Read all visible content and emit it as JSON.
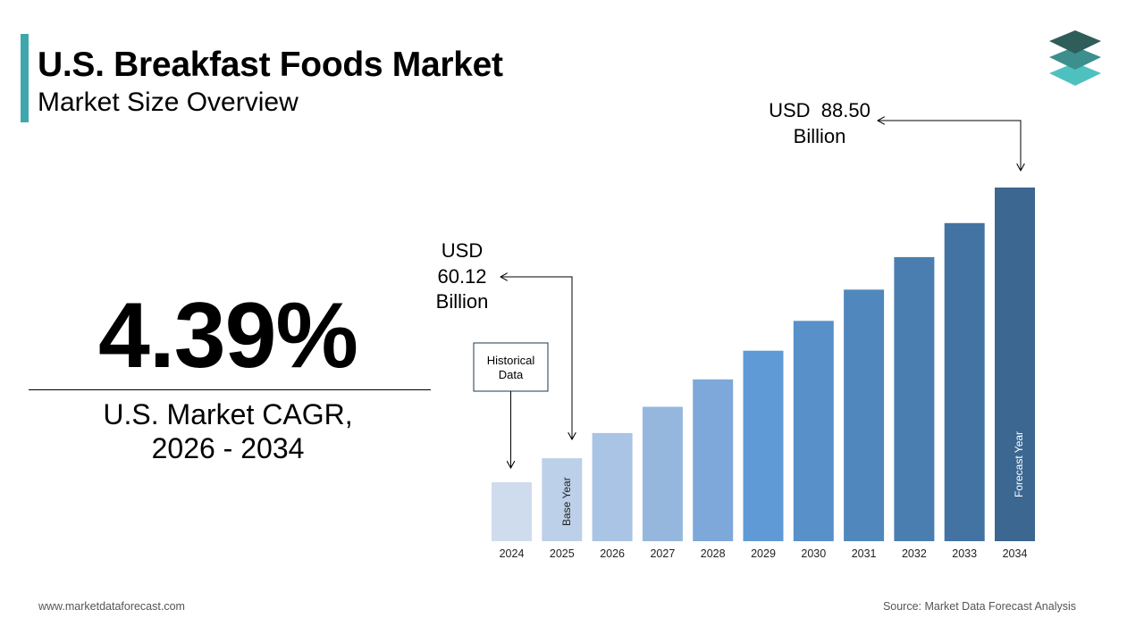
{
  "header": {
    "title": "U.S. Breakfast Foods Market",
    "subtitle": "Market Size Overview"
  },
  "cagr": {
    "value": "4.39%",
    "label_line1": "U.S. Market CAGR,",
    "label_line2": "2026 - 2034"
  },
  "callouts": {
    "base": [
      "USD",
      "60.12",
      "Billion"
    ],
    "forecast": [
      "USD  88.50",
      "Billion"
    ],
    "historical": [
      "Historical",
      "Data"
    ],
    "base_year": "Base Year",
    "forecast_year": "Forecast Year"
  },
  "footer": {
    "website": "www.marketdataforecast.com",
    "source": "Source: Market Data Forecast Analysis"
  },
  "colors": {
    "accent": "#3fa7ab",
    "logo_top": "#2f5d5a",
    "logo_mid": "#3c8f8c",
    "logo_bottom": "#4ec0c0"
  },
  "chart_data": {
    "type": "bar",
    "categories": [
      "2024",
      "2025",
      "2026",
      "2027",
      "2028",
      "2029",
      "2030",
      "2031",
      "2032",
      "2033",
      "2034"
    ],
    "values": [
      57.6,
      60.12,
      62.76,
      65.51,
      68.39,
      71.39,
      74.52,
      77.8,
      81.21,
      84.77,
      88.5
    ],
    "value_unit": "USD Billion",
    "bar_colors": [
      "#cfdcee",
      "#bdd0e9",
      "#a9c4e4",
      "#95b7de",
      "#7ea8d9",
      "#5f9ad6",
      "#5890c9",
      "#5087bc",
      "#4a7eb0",
      "#4373a2",
      "#3b6791"
    ],
    "grid": false,
    "legend": "none"
  }
}
